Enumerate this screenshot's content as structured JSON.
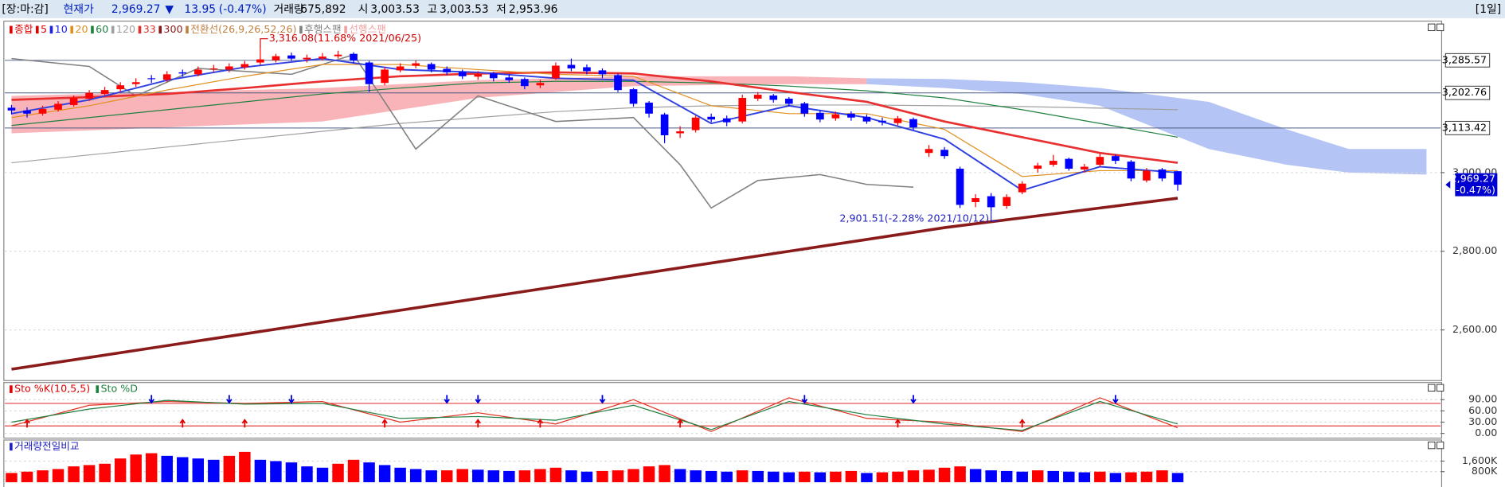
{
  "header": {
    "status": "[장:마:감]",
    "price_label": "현재가",
    "price": "2,969.27",
    "arrow": "▼",
    "change": "13.95",
    "change_pct": "(-0.47%)",
    "volume_label": "거래량",
    "volume": "675,892",
    "open_label": "시",
    "open": "3,003.53",
    "high_label": "고",
    "high": "3,003.53",
    "low_label": "저",
    "low": "2,953.96",
    "period": "[1일]"
  },
  "chart_data": [
    {
      "type": "candlestick",
      "legend": [
        {
          "name": "종합",
          "color": "#e00000"
        },
        {
          "name": "5",
          "color": "#e00000"
        },
        {
          "name": "10",
          "color": "#2020e0"
        },
        {
          "name": "20",
          "color": "#e09020"
        },
        {
          "name": "60",
          "color": "#208040"
        },
        {
          "name": "120",
          "color": "#a0a0a0"
        },
        {
          "name": "33",
          "color": "#e03030"
        },
        {
          "name": "300",
          "color": "#8b1a1a"
        },
        {
          "name": "전환선(26,9,26,52,26)",
          "color": "#c08040"
        },
        {
          "name": "후행스팬",
          "color": "#808080"
        },
        {
          "name": "선행스팬",
          "color": "#f0a0a0"
        }
      ],
      "up_color": "#ff0000",
      "down_color": "#0000ff",
      "ylim": [
        2476,
        3378
      ],
      "yticks": [
        {
          "value": 3000,
          "label": "3,000.00"
        },
        {
          "value": 2800,
          "label": "2,800.00"
        },
        {
          "value": 2600,
          "label": "2,600.00"
        }
      ],
      "hlines": [
        {
          "value": 3285.57,
          "label": "3,285.57"
        },
        {
          "value": 3202.76,
          "label": "3,202.76"
        },
        {
          "value": 3113.42,
          "label": "3,113.42"
        }
      ],
      "last": {
        "value": 2969.27,
        "label": "2,969.27",
        "change": "(-0.47%)"
      },
      "annotations": [
        {
          "x": 16,
          "value": 3316.08,
          "label": "3,316.08(11.68% 2021/06/25)",
          "color": "#d00000"
        },
        {
          "x": 63,
          "value": 2901.51,
          "label": "2,901.51(-2.28% 2021/10/12)",
          "color": "#2020c0"
        }
      ],
      "open": [
        3165,
        3158,
        3150,
        3160,
        3172,
        3188,
        3200,
        3212,
        3225,
        3240,
        3236,
        3255,
        3250,
        3265,
        3262,
        3268,
        3280,
        3286,
        3298,
        3288,
        3290,
        3296,
        3302,
        3280,
        3228,
        3260,
        3272,
        3276,
        3264,
        3256,
        3244,
        3252,
        3242,
        3238,
        3222,
        3240,
        3274,
        3268,
        3260,
        3248,
        3212,
        3178,
        3148,
        3100,
        3108,
        3142,
        3138,
        3130,
        3188,
        3196,
        3188,
        3176,
        3152,
        3138,
        3150,
        3142,
        3132,
        3126,
        3136,
        3050,
        3058,
        3010,
        2925,
        2940,
        2915,
        2950,
        3010,
        3020,
        3035,
        3008,
        3020,
        3042,
        3028,
        2980,
        3008,
        3003.53
      ],
      "high": [
        3172,
        3166,
        3170,
        3182,
        3196,
        3210,
        3218,
        3230,
        3240,
        3248,
        3258,
        3262,
        3270,
        3274,
        3278,
        3284,
        3316.08,
        3302,
        3305,
        3300,
        3304,
        3310,
        3306,
        3284,
        3268,
        3278,
        3285,
        3280,
        3270,
        3262,
        3258,
        3256,
        3250,
        3242,
        3236,
        3280,
        3290,
        3275,
        3265,
        3252,
        3215,
        3182,
        3152,
        3118,
        3145,
        3150,
        3145,
        3198,
        3205,
        3200,
        3192,
        3180,
        3158,
        3155,
        3156,
        3148,
        3140,
        3144,
        3140,
        3070,
        3065,
        3015,
        2945,
        2948,
        2945,
        2978,
        3025,
        3045,
        3038,
        3022,
        3048,
        3046,
        3032,
        3012,
        3012,
        3003.53
      ],
      "low": [
        3148,
        3140,
        3145,
        3155,
        3168,
        3182,
        3195,
        3205,
        3218,
        3228,
        3230,
        3244,
        3245,
        3256,
        3255,
        3262,
        3274,
        3280,
        3284,
        3280,
        3285,
        3290,
        3278,
        3205,
        3222,
        3255,
        3265,
        3255,
        3248,
        3238,
        3236,
        3232,
        3228,
        3212,
        3215,
        3236,
        3258,
        3250,
        3240,
        3205,
        3168,
        3140,
        3075,
        3088,
        3102,
        3128,
        3118,
        3125,
        3182,
        3178,
        3168,
        3142,
        3128,
        3132,
        3132,
        3124,
        3120,
        3120,
        3108,
        3040,
        3035,
        2910,
        2912,
        2901.51,
        2908,
        2945,
        3000,
        3015,
        3005,
        3000,
        3015,
        3022,
        2978,
        2975,
        2978,
        2953.96
      ],
      "close": [
        3158,
        3150,
        3162,
        3175,
        3190,
        3203,
        3210,
        3222,
        3230,
        3238,
        3250,
        3252,
        3262,
        3265,
        3270,
        3276,
        3288,
        3296,
        3290,
        3292,
        3295,
        3300,
        3285,
        3225,
        3262,
        3270,
        3278,
        3262,
        3255,
        3245,
        3250,
        3240,
        3235,
        3220,
        3228,
        3272,
        3265,
        3258,
        3250,
        3210,
        3175,
        3150,
        3095,
        3105,
        3140,
        3135,
        3128,
        3190,
        3198,
        3185,
        3175,
        3150,
        3135,
        3148,
        3140,
        3130,
        3128,
        3138,
        3115,
        3060,
        3042,
        2918,
        2935,
        2912,
        2938,
        2972,
        3018,
        3030,
        3010,
        3015,
        3040,
        3030,
        2985,
        3005,
        2985,
        2969.27
      ],
      "cloud": [
        {
          "color": "#f8b4b8",
          "x": [
            0,
            10,
            20,
            30,
            40,
            50,
            55
          ],
          "upper": [
            3195,
            3205,
            3215,
            3235,
            3245,
            3245,
            3240
          ],
          "lower": [
            3100,
            3115,
            3130,
            3190,
            3220,
            3225,
            3225
          ]
        },
        {
          "color": "#b4c4f4",
          "x": [
            55,
            60,
            65,
            70,
            77,
            82,
            86,
            91
          ],
          "upper": [
            3240,
            3238,
            3230,
            3215,
            3180,
            3110,
            3060,
            3060
          ],
          "lower": [
            3225,
            3215,
            3200,
            3170,
            3060,
            3020,
            3000,
            2995
          ]
        }
      ],
      "lines": [
        {
          "color": "#a0a0a0",
          "width": 1,
          "x": [
            0,
            5,
            10,
            15,
            20,
            25,
            30,
            35,
            40,
            45,
            50,
            55,
            60,
            65,
            70,
            75
          ],
          "values": [
            3025,
            3045,
            3065,
            3085,
            3105,
            3125,
            3140,
            3155,
            3165,
            3170,
            3172,
            3172,
            3170,
            3168,
            3164,
            3160
          ]
        },
        {
          "color": "#208040",
          "width": 1,
          "x": [
            0,
            5,
            10,
            15,
            20,
            25,
            30,
            35,
            40,
            45,
            50,
            55,
            60,
            65,
            70,
            75
          ],
          "values": [
            3120,
            3140,
            3160,
            3180,
            3200,
            3215,
            3228,
            3232,
            3232,
            3228,
            3220,
            3208,
            3190,
            3160,
            3125,
            3090
          ]
        },
        {
          "color": "#8b1a1a",
          "width": 3,
          "x": [
            0,
            5,
            10,
            15,
            20,
            25,
            30,
            35,
            40,
            45,
            50,
            55,
            60,
            65,
            70,
            75
          ],
          "values": [
            2500,
            2530,
            2560,
            2590,
            2620,
            2650,
            2680,
            2710,
            2740,
            2770,
            2800,
            2830,
            2860,
            2885,
            2910,
            2935
          ]
        },
        {
          "color": "#808080",
          "width": 1.3,
          "x": [
            0,
            5,
            8,
            12,
            18,
            22,
            26,
            30,
            35,
            40,
            43,
            45,
            48,
            52,
            55,
            58
          ],
          "values": [
            3290,
            3270,
            3195,
            3265,
            3250,
            3300,
            3060,
            3195,
            3130,
            3140,
            3020,
            2910,
            2980,
            2995,
            2970,
            2963
          ]
        },
        {
          "color": "#e83030",
          "width": 2.2,
          "x": [
            0,
            5,
            10,
            15,
            20,
            25,
            30,
            35,
            40,
            45,
            50,
            55,
            60,
            65,
            70,
            75
          ],
          "values": [
            3185,
            3192,
            3200,
            3215,
            3232,
            3245,
            3252,
            3255,
            3252,
            3232,
            3205,
            3180,
            3130,
            3090,
            3050,
            3025
          ]
        },
        {
          "color": "#e09020",
          "width": 1,
          "x": [
            0,
            5,
            10,
            15,
            20,
            25,
            30,
            35,
            40,
            45,
            50,
            55,
            60,
            65,
            70,
            75
          ],
          "values": [
            3140,
            3170,
            3210,
            3245,
            3275,
            3275,
            3262,
            3250,
            3245,
            3170,
            3150,
            3150,
            3110,
            2990,
            3005,
            3005
          ]
        },
        {
          "color": "#3040e0",
          "width": 1.6,
          "x": [
            0,
            5,
            10,
            15,
            20,
            25,
            30,
            35,
            40,
            45,
            50,
            55,
            60,
            65,
            70,
            75
          ],
          "values": [
            3150,
            3185,
            3235,
            3268,
            3290,
            3262,
            3255,
            3240,
            3235,
            3125,
            3170,
            3140,
            3085,
            2955,
            3015,
            3000
          ]
        }
      ]
    },
    {
      "type": "line",
      "legend": [
        {
          "name": "Sto %K(10,5,5)",
          "color": "#e00000"
        },
        {
          "name": "Sto %D",
          "color": "#208040"
        }
      ],
      "ylim": [
        -10,
        128
      ],
      "yticks": [
        {
          "value": 90,
          "label": "90.00"
        },
        {
          "value": 60,
          "label": "60.00"
        },
        {
          "value": 30,
          "label": "30.00"
        },
        {
          "value": 0,
          "label": "0.00"
        }
      ],
      "hlines": [
        80,
        20
      ],
      "hline_color": "#e04040",
      "series": [
        {
          "color": "#e03020",
          "x": [
            0,
            5,
            10,
            15,
            20,
            25,
            30,
            35,
            40,
            45,
            50,
            55,
            60,
            65,
            70,
            75
          ],
          "values": [
            20,
            75,
            85,
            80,
            85,
            30,
            55,
            25,
            90,
            5,
            95,
            40,
            30,
            5,
            95,
            15
          ]
        },
        {
          "color": "#208040",
          "x": [
            0,
            5,
            10,
            15,
            20,
            25,
            30,
            35,
            40,
            45,
            50,
            55,
            60,
            65,
            70,
            75
          ],
          "values": [
            30,
            65,
            88,
            78,
            80,
            40,
            45,
            35,
            75,
            10,
            85,
            50,
            25,
            8,
            85,
            25
          ]
        }
      ],
      "buy": [
        1,
        11,
        15,
        24,
        30,
        34,
        43,
        57,
        65
      ],
      "sell": [
        9,
        14,
        18,
        28,
        30,
        38,
        51,
        58,
        71
      ]
    },
    {
      "type": "bar",
      "title": "거래량전일비교",
      "title_color": "#2020c0",
      "up_color": "#ff0000",
      "down_color": "#0000ff",
      "ylim": [
        0,
        3127
      ],
      "yticks": [
        {
          "value": 1600,
          "label": "1,600K"
        },
        {
          "value": 800,
          "label": "800K"
        }
      ],
      "values": [
        700,
        800,
        900,
        1000,
        1200,
        1300,
        1400,
        1800,
        2100,
        2200,
        2000,
        1900,
        1800,
        1700,
        2000,
        2300,
        1700,
        1600,
        1500,
        1200,
        1100,
        1400,
        1700,
        1500,
        1300,
        1100,
        1000,
        900,
        900,
        1000,
        950,
        900,
        850,
        900,
        1000,
        1100,
        900,
        800,
        850,
        900,
        1000,
        1200,
        1300,
        1000,
        900,
        850,
        800,
        900,
        850,
        800,
        750,
        800,
        750,
        800,
        850,
        700,
        750,
        800,
        900,
        950,
        1100,
        1200,
        1000,
        900,
        850,
        800,
        900,
        850,
        800,
        750,
        800,
        700,
        750,
        800,
        900,
        700
      ]
    }
  ]
}
